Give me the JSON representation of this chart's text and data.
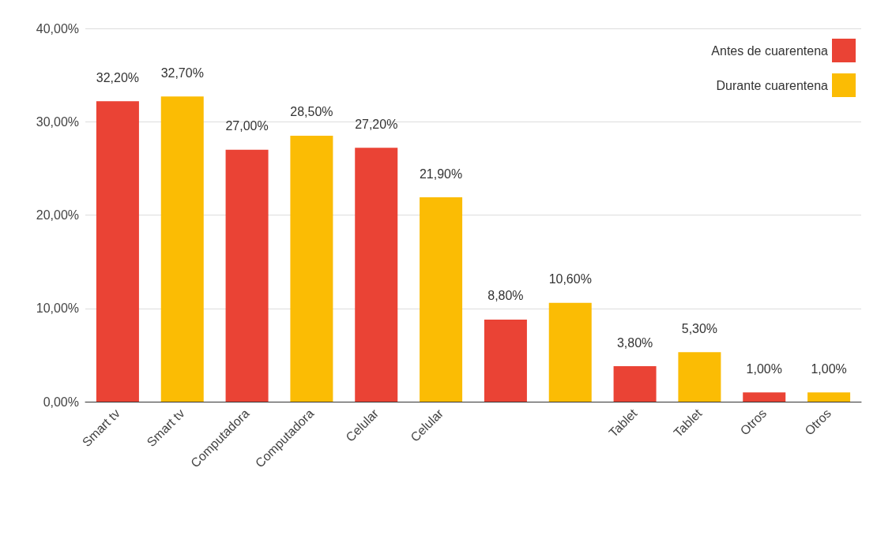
{
  "chart_data": {
    "type": "bar",
    "categories": [
      "Smart tv",
      "Smart tv",
      "Computadora",
      "Computadora",
      "Celular",
      "Celular",
      null,
      null,
      "Tablet",
      "Tablet",
      "Otros",
      "Otros"
    ],
    "series": [
      {
        "name": "Antes de cuarentena",
        "color": "#ea4335",
        "values": [
          32.2,
          null,
          27.0,
          null,
          27.2,
          null,
          8.8,
          null,
          3.8,
          null,
          1.0,
          null
        ],
        "value_labels": [
          "32,20%",
          null,
          "27,00%",
          null,
          "27,20%",
          null,
          "8,80%",
          null,
          "3,80%",
          null,
          "1,00%",
          null
        ]
      },
      {
        "name": "Durante cuarentena",
        "color": "#fbbc04",
        "values": [
          null,
          32.7,
          null,
          28.5,
          null,
          21.9,
          null,
          10.6,
          null,
          5.3,
          null,
          1.0
        ],
        "value_labels": [
          null,
          "32,70%",
          null,
          "28,50%",
          null,
          "21,90%",
          null,
          "10,60%",
          null,
          "5,30%",
          null,
          "1,00%"
        ]
      }
    ],
    "stacked": true,
    "ylim": [
      0,
      40
    ],
    "yticks": [
      {
        "value": 0,
        "label": "0,00%"
      },
      {
        "value": 10,
        "label": "10,00%"
      },
      {
        "value": 20,
        "label": "20,00%"
      },
      {
        "value": 30,
        "label": "30,00%"
      },
      {
        "value": 40,
        "label": "40,00%"
      }
    ],
    "grid": "y",
    "legend": "top right"
  }
}
